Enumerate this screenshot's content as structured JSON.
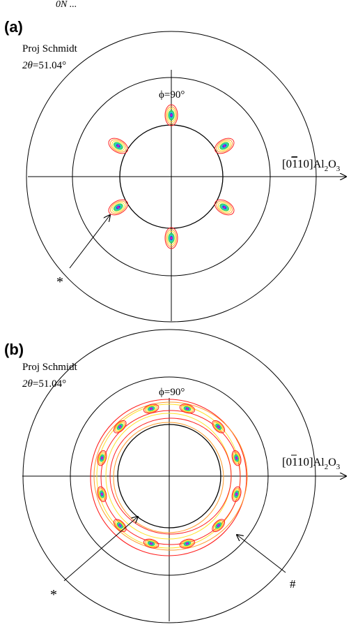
{
  "top_crop_text": "0N ...",
  "panels": [
    {
      "label": "(a)",
      "projection": "Proj Schmidt",
      "two_theta_symbol": "2θ",
      "two_theta_value": "=51.04°",
      "phi_label": "ϕ=90°",
      "direction_label": "[0",
      "direction_digit_bar": "1",
      "direction_tail": "10]",
      "material_al": "Al",
      "material_sub2": "2",
      "material_o": "O",
      "material_sub3": "3",
      "marker_star": "*"
    },
    {
      "label": "(b)",
      "projection": "Proj Schmidt",
      "two_theta_symbol": "2θ",
      "two_theta_value": "=51.04°",
      "phi_label": "ϕ=90°",
      "direction_label": "[0",
      "direction_digit_bar": "1",
      "direction_tail": "10]",
      "material_al": "Al",
      "material_sub2": "2",
      "material_o": "O",
      "material_sub3": "3",
      "marker_star": "*",
      "marker_hash": "#"
    }
  ],
  "colors": {
    "line": "#000000",
    "contour_red": "#ff2020",
    "contour_orange": "#ff9a2a",
    "contour_yellow": "#ffe22a",
    "contour_green": "#2fd15a",
    "contour_cyan": "#21c8d8",
    "contour_blue": "#1e30e6",
    "contour_magenta": "#d31cc8"
  }
}
